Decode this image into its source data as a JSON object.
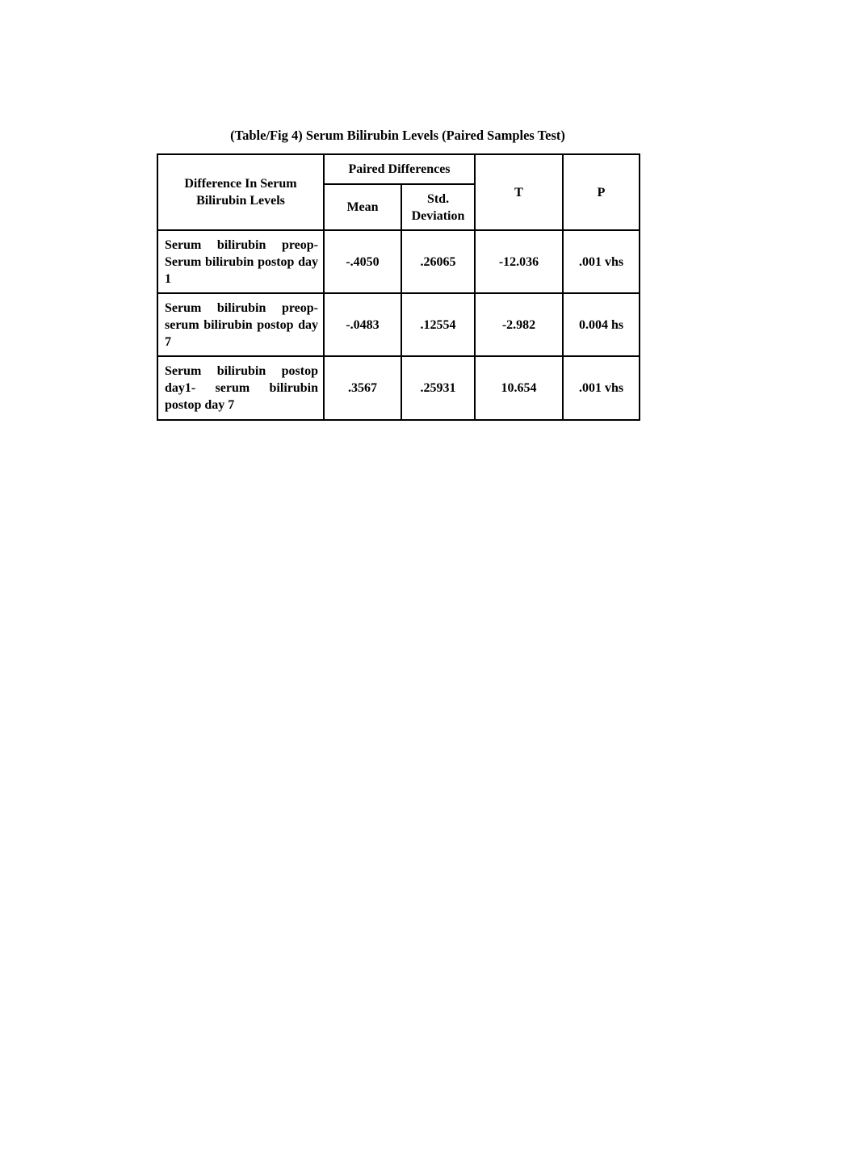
{
  "title": "(Table/Fig 4) Serum Bilirubin Levels (Paired Samples Test)",
  "headers": {
    "row_label": "Difference In Serum Bilirubin Levels",
    "group": "Paired Differences",
    "mean": "Mean",
    "std": "Std. Deviation",
    "t": "T",
    "p": "P"
  },
  "rows": [
    {
      "label": "Serum bilirubin preop- Serum bilirubin postop day 1",
      "mean": "-.4050",
      "std": ".26065",
      "t": "-12.036",
      "p": ".001 vhs"
    },
    {
      "label": "Serum bilirubin preop- serum bilirubin postop day 7",
      "mean": "-.0483",
      "std": ".12554",
      "t": "-2.982",
      "p": "0.004 hs"
    },
    {
      "label": "Serum bilirubin postop day1- serum bilirubin postop day 7",
      "mean": ".3567",
      "std": ".25931",
      "t": "10.654",
      "p": ".001 vhs"
    }
  ]
}
